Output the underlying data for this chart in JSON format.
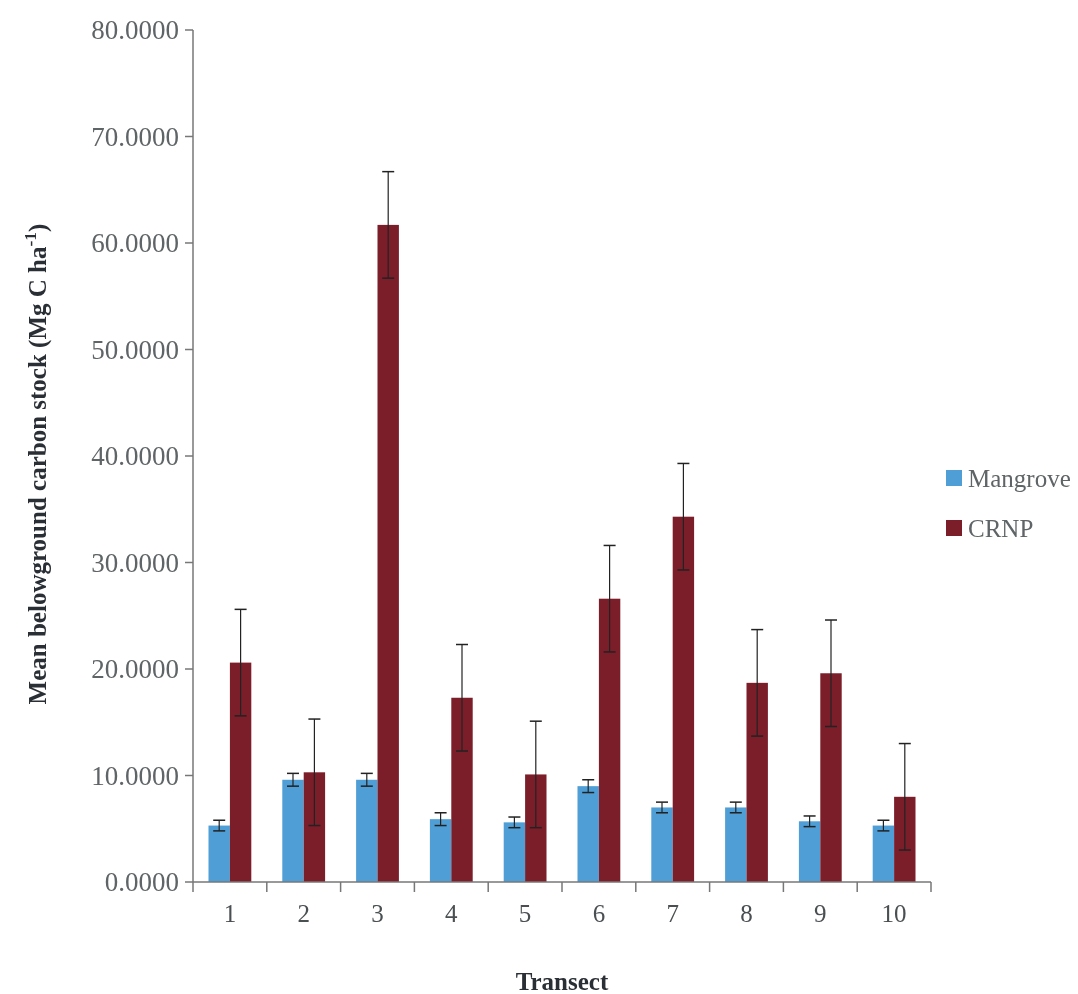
{
  "chart_data": {
    "type": "bar",
    "xlabel": "Transect",
    "ylabel": "Mean belowground carbon stock (Mg C ha$^{-1}$)",
    "categories": [
      "1",
      "2",
      "3",
      "4",
      "5",
      "6",
      "7",
      "8",
      "9",
      "10"
    ],
    "series": [
      {
        "name": "Mangrove",
        "color": "#4f9fd6",
        "values": [
          5.3,
          9.6,
          9.6,
          5.9,
          5.6,
          9.0,
          7.0,
          7.0,
          5.7,
          5.3
        ],
        "errors": [
          0.5,
          0.6,
          0.6,
          0.6,
          0.5,
          0.6,
          0.5,
          0.5,
          0.5,
          0.5
        ]
      },
      {
        "name": "CRNP",
        "color": "#7b1e2a",
        "values": [
          20.6,
          10.3,
          61.7,
          17.3,
          10.1,
          26.6,
          34.3,
          18.7,
          19.6,
          8.0
        ],
        "errors": [
          5,
          5,
          5,
          5,
          5,
          5,
          5,
          5,
          5,
          5
        ]
      }
    ],
    "ylim": [
      0,
      80
    ],
    "yticks": [
      {
        "value": 0,
        "label": "0.0000"
      },
      {
        "value": 10,
        "label": "10.0000"
      },
      {
        "value": 20,
        "label": "20.0000"
      },
      {
        "value": 30,
        "label": "30.0000"
      },
      {
        "value": 40,
        "label": "40.0000"
      },
      {
        "value": 50,
        "label": "50.0000"
      },
      {
        "value": 60,
        "label": "60.0000"
      },
      {
        "value": 70,
        "label": "70.0000"
      },
      {
        "value": 80,
        "label": "80.0000"
      }
    ],
    "legend": "right",
    "grid": false
  }
}
